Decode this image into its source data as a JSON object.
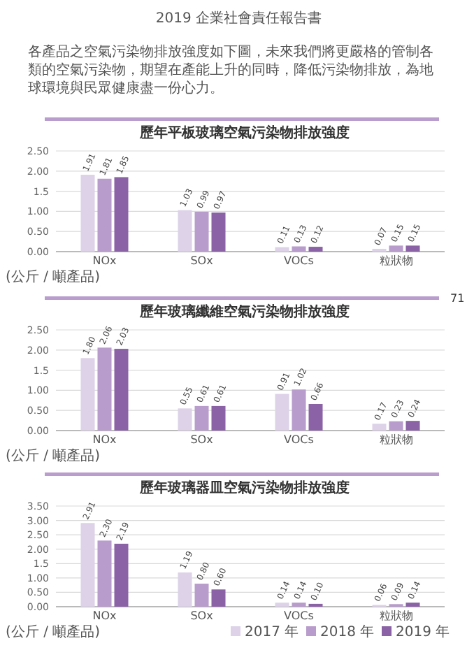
{
  "chart_data": [
    {
      "type": "bar",
      "title": "歷年平板玻璃空氣污染物排放強度",
      "ylabel": "(公斤 / 噸產品)",
      "annotations": [
        "2019 企業社會責任報告書",
        "各產品之空氣污染物排放強度如下圖，未來我們將更嚴格的管制各類的空氣污染物，期望在產能上升的同時，降低污染物排放，為地球環境與民眾健康盡一份心力。"
      ],
      "categories": [
        "NOx",
        "SOx",
        "VOCs",
        "粒狀物"
      ],
      "series": [
        {
          "color": "#ddd2e8",
          "values": [
            1.91,
            1.03,
            0.11,
            0.07
          ],
          "value_labels": [
            "1.91",
            "1.03",
            "0.11",
            "0.07"
          ]
        },
        {
          "color": "#b89ccb",
          "values": [
            1.81,
            0.99,
            0.13,
            0.15
          ],
          "value_labels": [
            "1.81",
            "0.99",
            "0.13",
            "0.15"
          ]
        },
        {
          "color": "#8a62a5",
          "values": [
            1.85,
            0.97,
            0.12,
            0.15
          ],
          "value_labels": [
            "1.85",
            "0.97",
            "0.12",
            "0.15"
          ]
        }
      ],
      "ylim": [
        0,
        2.5
      ],
      "yticks": [
        {
          "value": 0,
          "label": "0.00"
        },
        {
          "value": 0.5,
          "label": "0.50"
        },
        {
          "value": 1,
          "label": "1.00"
        },
        {
          "value": 1.5,
          "label": "1.5"
        },
        {
          "value": 2,
          "label": "2.00"
        },
        {
          "value": 2.5,
          "label": "2.50"
        }
      ],
      "grid": "y",
      "legend": false
    },
    {
      "type": "bar",
      "title": "歷年玻璃纖維空氣污染物排放強度",
      "ylabel": "(公斤 / 噸產品)",
      "annotations": [
        "71"
      ],
      "categories": [
        "NOx",
        "SOx",
        "VOCs",
        "粒狀物"
      ],
      "series": [
        {
          "color": "#ddd2e8",
          "values": [
            1.8,
            0.55,
            0.91,
            0.17
          ],
          "value_labels": [
            "1.80",
            "0.55",
            "0.91",
            "0.17"
          ]
        },
        {
          "color": "#b89ccb",
          "values": [
            2.06,
            0.61,
            1.02,
            0.23
          ],
          "value_labels": [
            "2.06",
            "0.61",
            "1.02",
            "0.23"
          ]
        },
        {
          "color": "#8a62a5",
          "values": [
            2.03,
            0.61,
            0.66,
            0.24
          ],
          "value_labels": [
            "2.03",
            "0.61",
            "0.66",
            "0.24"
          ]
        }
      ],
      "ylim": [
        0,
        2.5
      ],
      "yticks": [
        {
          "value": 0,
          "label": "0.00"
        },
        {
          "value": 0.5,
          "label": "0.50"
        },
        {
          "value": 1,
          "label": "1.00"
        },
        {
          "value": 1.5,
          "label": "1.5"
        },
        {
          "value": 2,
          "label": "2.00"
        },
        {
          "value": 2.5,
          "label": "2.50"
        }
      ],
      "grid": "y",
      "legend": false
    },
    {
      "type": "bar",
      "title": "歷年玻璃器皿空氣污染物排放強度",
      "ylabel": "(公斤 / 噸產品)",
      "categories": [
        "NOx",
        "SOx",
        "VOCs",
        "粒狀物"
      ],
      "series": [
        {
          "name": "2017 年",
          "color": "#ddd2e8",
          "values": [
            2.91,
            1.19,
            0.14,
            0.06
          ],
          "value_labels": [
            "2.91",
            "1.19",
            "0.14",
            "0.06"
          ]
        },
        {
          "name": "2018 年",
          "color": "#b89ccb",
          "values": [
            2.3,
            0.8,
            0.14,
            0.09
          ],
          "value_labels": [
            "2.30",
            "0.80",
            "0.14",
            "0.09"
          ]
        },
        {
          "name": "2019 年",
          "color": "#8a62a5",
          "values": [
            2.19,
            0.6,
            0.1,
            0.14
          ],
          "value_labels": [
            "2.19",
            "0.60",
            "0.10",
            "0.14"
          ]
        }
      ],
      "ylim": [
        0,
        3.5
      ],
      "yticks": [
        {
          "value": 0,
          "label": "0.00"
        },
        {
          "value": 0.5,
          "label": "0.50"
        },
        {
          "value": 1,
          "label": "1.00"
        },
        {
          "value": 1.5,
          "label": "1.5"
        },
        {
          "value": 2,
          "label": "2.00"
        },
        {
          "value": 2.5,
          "label": "2.50"
        },
        {
          "value": 3,
          "label": "3.00"
        },
        {
          "value": 3.5,
          "label": "3.50"
        }
      ],
      "grid": "y",
      "legend": "bottom"
    }
  ]
}
